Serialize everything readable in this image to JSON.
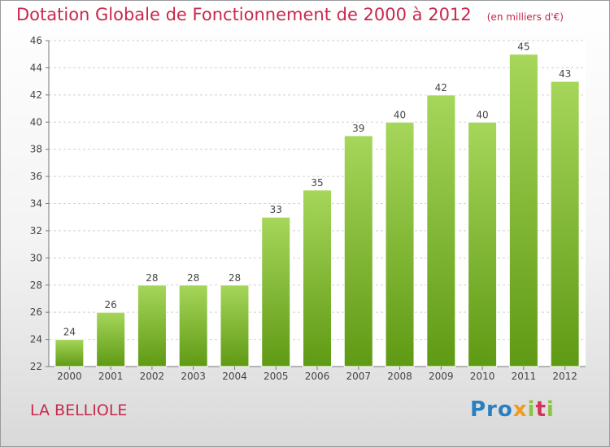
{
  "header": {
    "title": "Dotation Globale de Fonctionnement de 2000 à 2012",
    "unit": "(en milliers d'€)"
  },
  "footer": {
    "commune": "LA BELLIOLE",
    "logo": {
      "p1": "Pro",
      "x": "x",
      "i": "i",
      "t": "t",
      "i2": "i"
    }
  },
  "colors": {
    "bar_light": "#a6d65a",
    "bar_dark": "#5f9a14",
    "accent": "#c8284e"
  },
  "chart_data": {
    "type": "bar",
    "categories": [
      "2000",
      "2001",
      "2002",
      "2003",
      "2004",
      "2005",
      "2006",
      "2007",
      "2008",
      "2009",
      "2010",
      "2011",
      "2012"
    ],
    "values": [
      24,
      26,
      28,
      28,
      28,
      33,
      35,
      39,
      40,
      42,
      40,
      45,
      43
    ],
    "ylim": [
      22,
      46
    ],
    "yticks": [
      22,
      24,
      26,
      28,
      30,
      32,
      34,
      36,
      38,
      40,
      42,
      44,
      46
    ],
    "grid": true,
    "title": "Dotation Globale de Fonctionnement de 2000 à 2012",
    "xlabel": "",
    "ylabel": ""
  }
}
